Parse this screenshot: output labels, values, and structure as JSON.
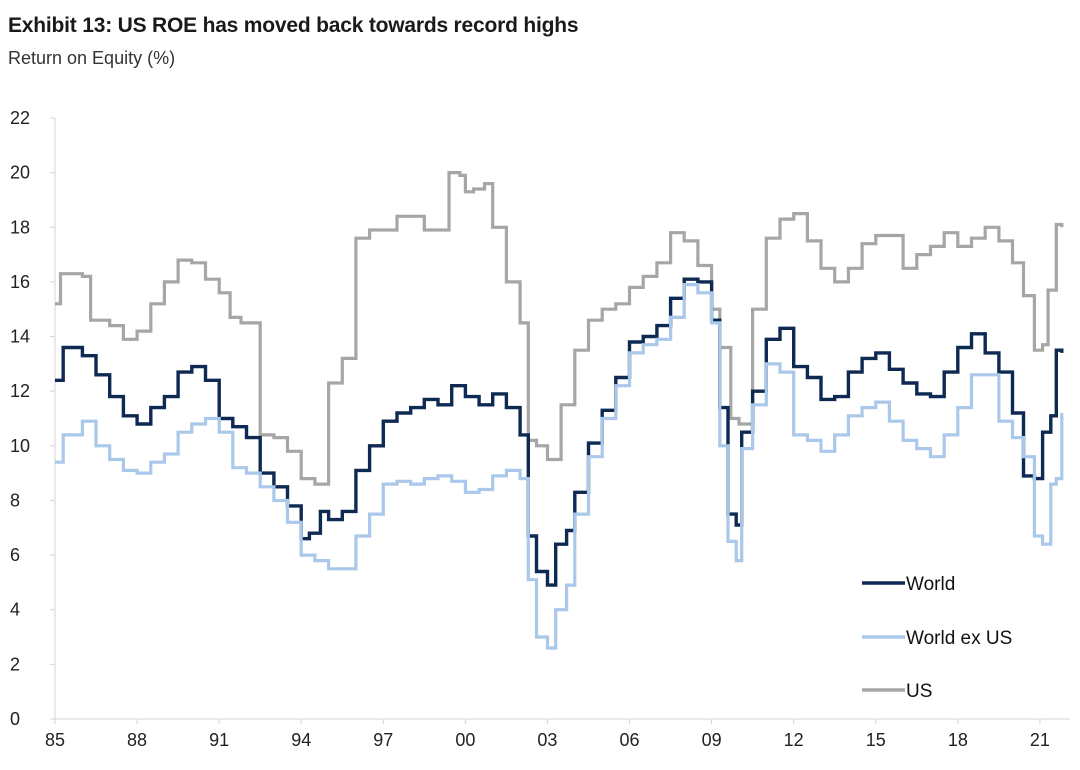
{
  "header": {
    "title": "Exhibit 13: US ROE has moved back towards record highs",
    "subtitle": "Return on Equity (%)"
  },
  "chart_data": {
    "type": "line",
    "title": "Exhibit 13: US ROE has moved back towards record highs",
    "subtitle": "Return on Equity (%)",
    "xlabel": "",
    "ylabel": "",
    "xlim": [
      1985,
      2022.1
    ],
    "ylim": [
      0,
      22
    ],
    "x_ticks": [
      "85",
      "88",
      "91",
      "94",
      "97",
      "00",
      "03",
      "06",
      "09",
      "12",
      "15",
      "18",
      "21"
    ],
    "y_ticks": [
      "0",
      "2",
      "4",
      "6",
      "8",
      "10",
      "12",
      "14",
      "16",
      "18",
      "20",
      "22"
    ],
    "grid": false,
    "legend_position": "bottom-right",
    "series": [
      {
        "name": "US",
        "color": "#a6a6a6",
        "x": [
          1985.0,
          1985.2,
          1986.0,
          1986.3,
          1987.0,
          1987.5,
          1988.0,
          1988.5,
          1989.0,
          1989.5,
          1990.0,
          1990.5,
          1991.0,
          1991.4,
          1991.8,
          1992.5,
          1993.0,
          1993.5,
          1994.0,
          1994.5,
          1995.0,
          1995.5,
          1996.0,
          1996.5,
          1997.0,
          1997.5,
          1998.0,
          1998.5,
          1999.0,
          1999.4,
          1999.8,
          2000.0,
          2000.3,
          2000.7,
          2001.0,
          2001.5,
          2002.0,
          2002.3,
          2002.6,
          2003.0,
          2003.5,
          2004.0,
          2004.5,
          2005.0,
          2005.5,
          2006.0,
          2006.5,
          2007.0,
          2007.5,
          2008.0,
          2008.5,
          2009.0,
          2009.3,
          2009.7,
          2010.0,
          2010.5,
          2011.0,
          2011.5,
          2012.0,
          2012.5,
          2013.0,
          2013.5,
          2014.0,
          2014.5,
          2015.0,
          2015.5,
          2016.0,
          2016.5,
          2017.0,
          2017.5,
          2018.0,
          2018.5,
          2019.0,
          2019.5,
          2020.0,
          2020.4,
          2020.8,
          2021.1,
          2021.3,
          2021.6,
          2021.8
        ],
        "values": [
          15.2,
          16.3,
          16.2,
          14.6,
          14.4,
          13.9,
          14.2,
          15.2,
          16.0,
          16.8,
          16.7,
          16.1,
          15.6,
          14.7,
          14.5,
          10.4,
          10.3,
          9.8,
          8.8,
          8.6,
          12.3,
          13.2,
          17.6,
          17.9,
          17.9,
          18.4,
          18.4,
          17.9,
          17.9,
          20.0,
          19.9,
          19.3,
          19.4,
          19.6,
          18.0,
          16.0,
          14.5,
          10.2,
          10.0,
          9.5,
          11.5,
          13.5,
          14.6,
          15.0,
          15.2,
          15.8,
          16.2,
          16.7,
          17.8,
          17.5,
          16.6,
          15.0,
          13.6,
          11.0,
          10.8,
          15.0,
          17.6,
          18.3,
          18.5,
          17.5,
          16.5,
          16.0,
          16.5,
          17.4,
          17.7,
          17.7,
          16.5,
          17.0,
          17.3,
          17.8,
          17.3,
          17.6,
          18.0,
          17.5,
          16.7,
          15.5,
          13.5,
          13.7,
          15.7,
          18.1,
          18.0
        ]
      },
      {
        "name": "World",
        "color": "#0f2a52",
        "x": [
          1985.0,
          1985.3,
          1986.0,
          1986.5,
          1987.0,
          1987.5,
          1988.0,
          1988.5,
          1989.0,
          1989.5,
          1990.0,
          1990.5,
          1991.0,
          1991.5,
          1992.0,
          1992.5,
          1993.0,
          1993.5,
          1994.0,
          1994.3,
          1994.7,
          1995.0,
          1995.5,
          1996.0,
          1996.5,
          1997.0,
          1997.5,
          1998.0,
          1998.5,
          1999.0,
          1999.5,
          2000.0,
          2000.5,
          2001.0,
          2001.5,
          2002.0,
          2002.3,
          2002.6,
          2003.0,
          2003.3,
          2003.7,
          2004.0,
          2004.5,
          2005.0,
          2005.5,
          2006.0,
          2006.5,
          2007.0,
          2007.5,
          2008.0,
          2008.5,
          2009.0,
          2009.3,
          2009.6,
          2009.9,
          2010.1,
          2010.5,
          2011.0,
          2011.5,
          2012.0,
          2012.5,
          2013.0,
          2013.5,
          2014.0,
          2014.5,
          2015.0,
          2015.5,
          2016.0,
          2016.5,
          2017.0,
          2017.5,
          2018.0,
          2018.5,
          2019.0,
          2019.5,
          2020.0,
          2020.4,
          2020.8,
          2021.1,
          2021.4,
          2021.6,
          2021.8
        ],
        "values": [
          12.4,
          13.6,
          13.3,
          12.6,
          11.8,
          11.1,
          10.8,
          11.4,
          11.8,
          12.7,
          12.9,
          12.4,
          11.0,
          10.7,
          10.3,
          9.0,
          8.5,
          7.8,
          6.6,
          6.8,
          7.6,
          7.3,
          7.6,
          9.1,
          10.0,
          10.9,
          11.2,
          11.4,
          11.7,
          11.5,
          12.2,
          11.8,
          11.5,
          11.9,
          11.4,
          10.4,
          6.7,
          5.4,
          4.9,
          6.4,
          6.9,
          8.3,
          10.1,
          11.3,
          12.5,
          13.8,
          14.0,
          14.4,
          15.4,
          16.1,
          16.0,
          14.6,
          11.4,
          7.5,
          7.1,
          10.5,
          12.0,
          13.9,
          14.3,
          12.9,
          12.5,
          11.7,
          11.8,
          12.7,
          13.2,
          13.4,
          12.8,
          12.3,
          11.9,
          11.8,
          12.7,
          13.6,
          14.1,
          13.4,
          12.7,
          11.2,
          8.9,
          8.8,
          10.5,
          11.1,
          13.5,
          13.4
        ]
      },
      {
        "name": "World ex US",
        "color": "#a9c8ea",
        "x": [
          1985.0,
          1985.3,
          1986.0,
          1986.5,
          1987.0,
          1987.5,
          1988.0,
          1988.5,
          1989.0,
          1989.5,
          1990.0,
          1990.5,
          1991.0,
          1991.5,
          1992.0,
          1992.5,
          1993.0,
          1993.5,
          1994.0,
          1994.5,
          1995.0,
          1995.5,
          1996.0,
          1996.5,
          1997.0,
          1997.5,
          1998.0,
          1998.5,
          1999.0,
          1999.5,
          2000.0,
          2000.5,
          2001.0,
          2001.5,
          2002.0,
          2002.3,
          2002.6,
          2003.0,
          2003.3,
          2003.7,
          2004.0,
          2004.5,
          2005.0,
          2005.5,
          2006.0,
          2006.5,
          2007.0,
          2007.5,
          2008.0,
          2008.5,
          2009.0,
          2009.3,
          2009.6,
          2009.9,
          2010.1,
          2010.5,
          2011.0,
          2011.5,
          2012.0,
          2012.5,
          2013.0,
          2013.5,
          2014.0,
          2014.5,
          2015.0,
          2015.5,
          2016.0,
          2016.5,
          2017.0,
          2017.5,
          2018.0,
          2018.5,
          2019.0,
          2019.5,
          2020.0,
          2020.4,
          2020.8,
          2021.1,
          2021.4,
          2021.6,
          2021.8
        ],
        "values": [
          9.4,
          10.4,
          10.9,
          10.0,
          9.5,
          9.1,
          9.0,
          9.4,
          9.7,
          10.5,
          10.8,
          11.0,
          10.5,
          9.2,
          9.0,
          8.5,
          8.0,
          7.2,
          6.0,
          5.8,
          5.5,
          5.5,
          6.7,
          7.5,
          8.6,
          8.7,
          8.6,
          8.8,
          8.9,
          8.7,
          8.3,
          8.4,
          8.9,
          9.1,
          8.8,
          5.1,
          3.0,
          2.6,
          4.0,
          4.9,
          7.5,
          9.6,
          11.0,
          12.2,
          13.4,
          13.7,
          13.9,
          14.7,
          15.9,
          15.6,
          14.5,
          10.0,
          6.5,
          5.8,
          9.9,
          11.5,
          13.0,
          12.7,
          10.4,
          10.2,
          9.8,
          10.4,
          11.1,
          11.4,
          11.6,
          10.9,
          10.2,
          9.9,
          9.6,
          10.4,
          11.4,
          12.6,
          12.6,
          10.9,
          10.3,
          9.6,
          6.7,
          6.4,
          8.6,
          8.8,
          11.2
        ]
      }
    ],
    "legend_order": [
      "World",
      "World ex US",
      "US"
    ]
  }
}
